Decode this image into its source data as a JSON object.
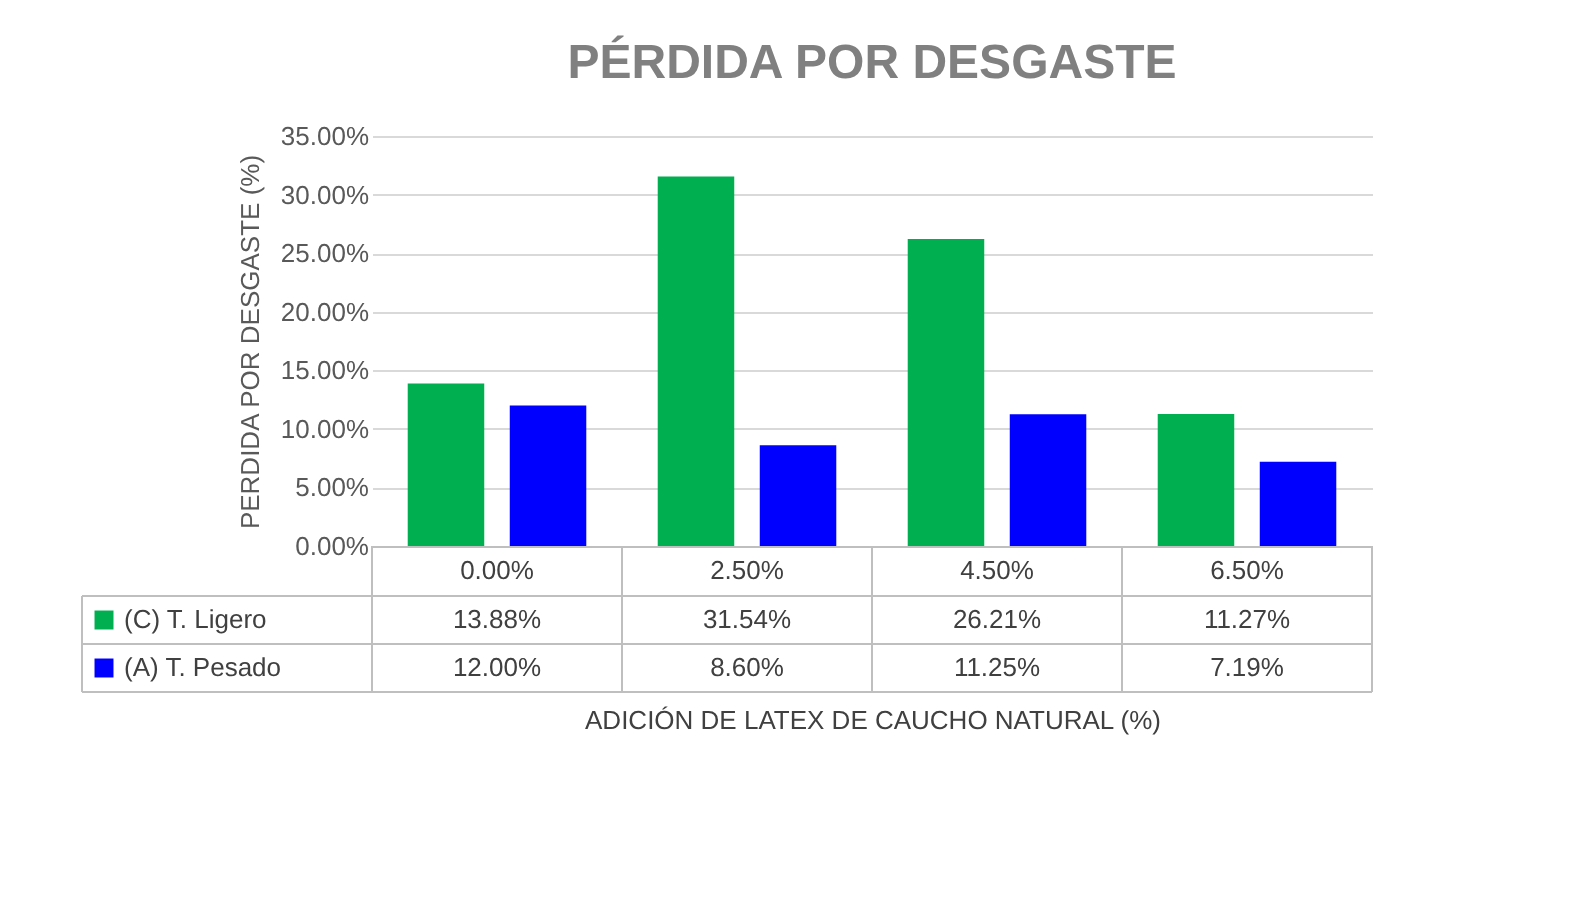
{
  "chart_data": {
    "type": "bar",
    "title": "PÉRDIDA POR DESGASTE",
    "xlabel": "ADICIÓN DE LATEX DE CAUCHO NATURAL (%)",
    "ylabel": "PERDIDA POR DESGASTE (%)",
    "categories": [
      "0.00%",
      "2.50%",
      "4.50%",
      "6.50%"
    ],
    "series": [
      {
        "name": "(C) T. Ligero",
        "color": "#00b050",
        "values": [
          13.88,
          31.54,
          26.21,
          11.27
        ],
        "value_labels": [
          "13.88%",
          "31.54%",
          "26.21%",
          "11.27%"
        ]
      },
      {
        "name": "(A) T. Pesado",
        "color": "#0000ff",
        "values": [
          12.0,
          8.6,
          11.25,
          7.19
        ],
        "value_labels": [
          "12.00%",
          "8.60%",
          "11.25%",
          "7.19%"
        ]
      }
    ],
    "ylim": [
      0,
      35
    ],
    "yticks": [
      {
        "value": 0,
        "label": "0.00%"
      },
      {
        "value": 5,
        "label": "5.00%"
      },
      {
        "value": 10,
        "label": "10.00%"
      },
      {
        "value": 15,
        "label": "15.00%"
      },
      {
        "value": 20,
        "label": "20.00%"
      },
      {
        "value": 25,
        "label": "25.00%"
      },
      {
        "value": 30,
        "label": "30.00%"
      },
      {
        "value": 35,
        "label": "35.00%"
      }
    ],
    "grid": "y",
    "legend": "bottom left"
  }
}
